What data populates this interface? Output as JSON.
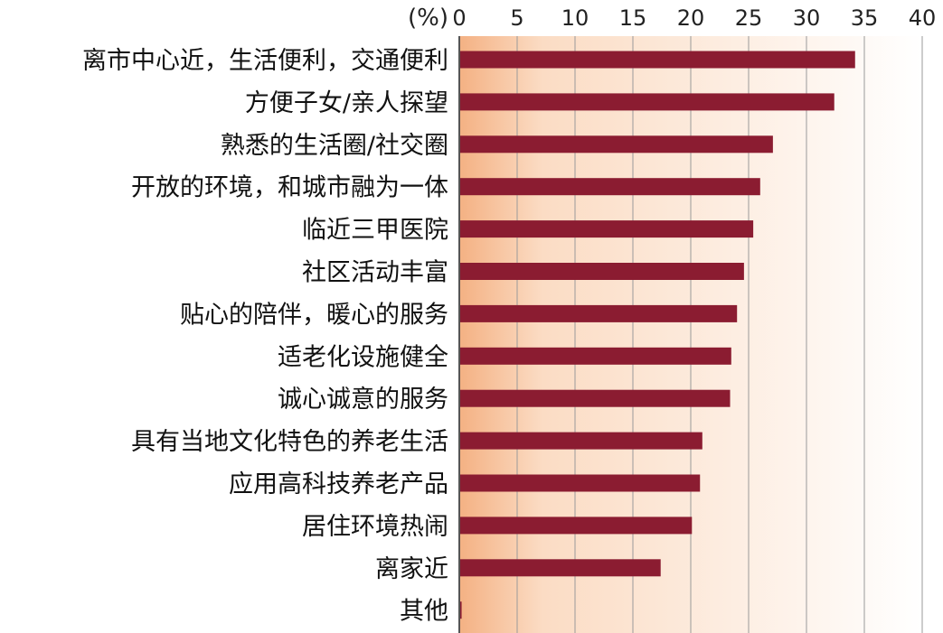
{
  "chart_data": {
    "type": "bar",
    "orientation": "horizontal",
    "unit": "(%)",
    "xlim": [
      0,
      40
    ],
    "ticks": [
      "0",
      "5",
      "10",
      "15",
      "20",
      "25",
      "30",
      "35",
      "40"
    ],
    "tick_values": [
      0,
      5,
      10,
      15,
      20,
      25,
      30,
      35,
      40
    ],
    "categories": [
      "离市中心近，生活便利，交通便利",
      "方便子女/亲人探望",
      "熟悉的生活圈/社交圈",
      "开放的环境，和城市融为一体",
      "临近三甲医院",
      "社区活动丰富",
      "贴心的陪伴，暖心的服务",
      "适老化设施健全",
      "诚心诚意的服务",
      "具有当地文化特色的养老生活",
      "应用高科技养老产品",
      "居住环境热闹",
      "离家近",
      "其他"
    ],
    "values": [
      34.2,
      32.4,
      27.1,
      26.0,
      25.4,
      24.6,
      24.0,
      23.5,
      23.4,
      21.0,
      20.8,
      20.1,
      17.4,
      0.2
    ],
    "grid": true,
    "colors": {
      "bar": "#8b1c31",
      "gradient_start": "#f4b183",
      "gradient_end": "#ffffff",
      "grid": "#9a9a9a"
    }
  }
}
